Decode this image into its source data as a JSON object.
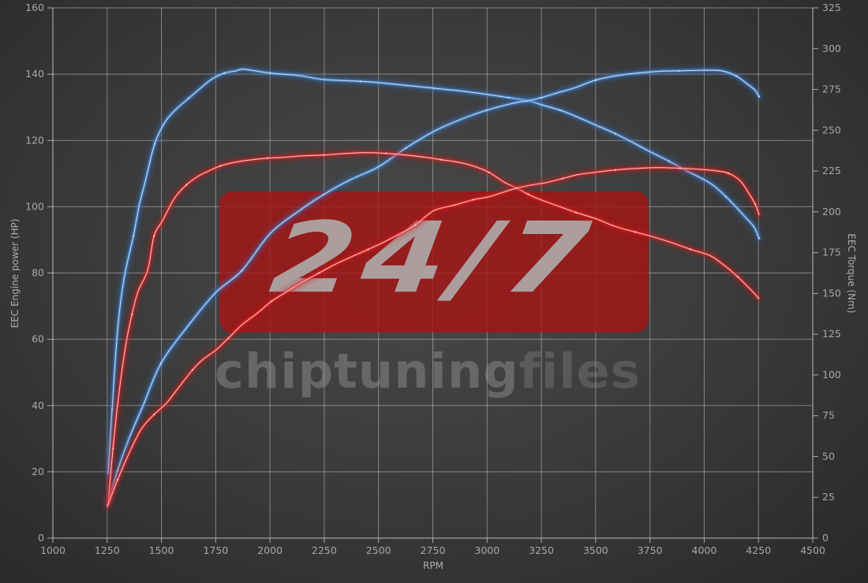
{
  "watermark": {
    "badge": "24/7",
    "brand_bold": "chiptuning",
    "brand_light": "files"
  },
  "axes": {
    "x": {
      "label": "RPM",
      "min": 1000,
      "max": 4500,
      "tick_step": 250,
      "ticks": [
        1000,
        1250,
        1500,
        1750,
        2000,
        2250,
        2500,
        2750,
        3000,
        3250,
        3500,
        3750,
        4000,
        4250,
        4500
      ]
    },
    "y_left": {
      "label": "EEC Engine power (HP)",
      "min": 0,
      "max": 160,
      "tick_step": 20,
      "ticks": [
        0,
        20,
        40,
        60,
        80,
        100,
        120,
        140,
        160
      ]
    },
    "y_right": {
      "label": "EEC Torque (Nm)",
      "min": 0,
      "max": 325,
      "tick_step": 25,
      "ticks": [
        0,
        25,
        50,
        75,
        100,
        125,
        150,
        175,
        200,
        225,
        250,
        275,
        300,
        325
      ]
    }
  },
  "colors": {
    "background": "#3d3d3d",
    "grid": "#cccccc",
    "axis_text": "#a8a8a8",
    "blue_glow": "#2e6fc4",
    "blue_mid": "#4e92dd",
    "blue_core": "#d6e8fa",
    "red_glow": "#c81616",
    "red_mid": "#e62c2c",
    "red_core": "#ffd9d9",
    "watermark_box": "#a71313",
    "watermark_text": "#b0b0b0",
    "brand_text": "#969696"
  },
  "chart_data": {
    "type": "line",
    "title": "",
    "xlabel": "RPM",
    "ylabel_left": "EEC Engine power (HP)",
    "ylabel_right": "EEC Torque (Nm)",
    "xlim": [
      1000,
      4500
    ],
    "ylim_left": [
      0,
      160
    ],
    "ylim_right": [
      0,
      325
    ],
    "grid": "on",
    "legend_position": "none",
    "series": [
      {
        "id": "torque-blue",
        "color": "blue",
        "axis": "nm",
        "units": "Nm",
        "peak": {
          "rpm": 1880,
          "value": 287
        },
        "points": [
          [
            1255,
            39.5
          ],
          [
            1273,
            79.1
          ],
          [
            1298,
            127.3
          ],
          [
            1327,
            158.6
          ],
          [
            1371,
            185.2
          ],
          [
            1397,
            203.5
          ],
          [
            1426,
            218.9
          ],
          [
            1469,
            241.6
          ],
          [
            1517,
            255.1
          ],
          [
            1571,
            263.3
          ],
          [
            1626,
            269.6
          ],
          [
            1680,
            275.8
          ],
          [
            1735,
            281.6
          ],
          [
            1790,
            285.0
          ],
          [
            1844,
            286.4
          ],
          [
            1880,
            287.4
          ],
          [
            2001,
            285.0
          ],
          [
            2135,
            283.5
          ],
          [
            2248,
            281.1
          ],
          [
            2416,
            280.0
          ],
          [
            2500,
            279.2
          ],
          [
            2626,
            277.5
          ],
          [
            2754,
            275.8
          ],
          [
            2889,
            273.9
          ],
          [
            2997,
            272.0
          ],
          [
            3099,
            270.0
          ],
          [
            3190,
            268.1
          ],
          [
            3249,
            265.7
          ],
          [
            3336,
            262.3
          ],
          [
            3409,
            258.5
          ],
          [
            3500,
            253.2
          ],
          [
            3591,
            247.9
          ],
          [
            3664,
            243.0
          ],
          [
            3751,
            236.8
          ],
          [
            3838,
            231.0
          ],
          [
            3918,
            225.2
          ],
          [
            4028,
            217.5
          ],
          [
            4100,
            209.3
          ],
          [
            4173,
            199.1
          ],
          [
            4228,
            190.9
          ],
          [
            4253,
            183.7
          ]
        ]
      },
      {
        "id": "power-blue",
        "color": "blue",
        "axis": "hp",
        "units": "HP",
        "peak": {
          "rpm": 4002,
          "value": 141
        },
        "points": [
          [
            1251,
            10.0
          ],
          [
            1298,
            20.4
          ],
          [
            1353,
            30.4
          ],
          [
            1415,
            39.9
          ],
          [
            1498,
            52.7
          ],
          [
            1626,
            64.3
          ],
          [
            1750,
            74.1
          ],
          [
            1870,
            80.7
          ],
          [
            2001,
            91.9
          ],
          [
            2135,
            98.8
          ],
          [
            2248,
            103.7
          ],
          [
            2372,
            108.2
          ],
          [
            2499,
            112.0
          ],
          [
            2626,
            117.7
          ],
          [
            2754,
            122.7
          ],
          [
            2877,
            126.3
          ],
          [
            2997,
            129.1
          ],
          [
            3125,
            131.3
          ],
          [
            3190,
            132.0
          ],
          [
            3249,
            132.9
          ],
          [
            3336,
            134.6
          ],
          [
            3409,
            136.0
          ],
          [
            3500,
            138.2
          ],
          [
            3602,
            139.6
          ],
          [
            3773,
            140.8
          ],
          [
            3882,
            141.0
          ],
          [
            4002,
            141.2
          ],
          [
            4082,
            141.0
          ],
          [
            4148,
            139.4
          ],
          [
            4199,
            137.0
          ],
          [
            4235,
            135.1
          ],
          [
            4253,
            133.2
          ]
        ]
      },
      {
        "id": "torque-red",
        "color": "red",
        "axis": "nm",
        "units": "Nm",
        "peak": {
          "rpm": 2444,
          "value": 236
        },
        "points": [
          [
            1255,
            22.2
          ],
          [
            1277,
            55.0
          ],
          [
            1302,
            86.3
          ],
          [
            1335,
            117.7
          ],
          [
            1364,
            137.0
          ],
          [
            1393,
            151.4
          ],
          [
            1437,
            164.4
          ],
          [
            1466,
            185.2
          ],
          [
            1506,
            194.8
          ],
          [
            1560,
            208.3
          ],
          [
            1615,
            216.5
          ],
          [
            1669,
            221.8
          ],
          [
            1720,
            225.2
          ],
          [
            1771,
            228.1
          ],
          [
            1844,
            230.5
          ],
          [
            1917,
            231.9
          ],
          [
            1990,
            232.9
          ],
          [
            2062,
            233.4
          ],
          [
            2153,
            234.3
          ],
          [
            2248,
            234.8
          ],
          [
            2353,
            235.8
          ],
          [
            2444,
            236.3
          ],
          [
            2535,
            235.8
          ],
          [
            2626,
            234.8
          ],
          [
            2717,
            233.4
          ],
          [
            2790,
            231.9
          ],
          [
            2863,
            230.5
          ],
          [
            2936,
            228.1
          ],
          [
            3008,
            224.2
          ],
          [
            3081,
            218.0
          ],
          [
            3136,
            214.6
          ],
          [
            3190,
            210.7
          ],
          [
            3249,
            207.3
          ],
          [
            3318,
            204.0
          ],
          [
            3409,
            199.6
          ],
          [
            3500,
            195.8
          ],
          [
            3591,
            191.0
          ],
          [
            3682,
            187.6
          ],
          [
            3751,
            185.2
          ],
          [
            3846,
            181.3
          ],
          [
            3937,
            177.0
          ],
          [
            4028,
            173.1
          ],
          [
            4100,
            166.4
          ],
          [
            4155,
            160.1
          ],
          [
            4199,
            154.3
          ],
          [
            4228,
            150.4
          ],
          [
            4250,
            147.1
          ]
        ]
      },
      {
        "id": "power-red",
        "color": "red",
        "axis": "hp",
        "units": "HP",
        "peak": {
          "rpm": 3791,
          "value": 112
        },
        "points": [
          [
            1251,
            9.5
          ],
          [
            1298,
            17.6
          ],
          [
            1353,
            25.9
          ],
          [
            1408,
            33.0
          ],
          [
            1466,
            37.3
          ],
          [
            1524,
            40.8
          ],
          [
            1589,
            46.3
          ],
          [
            1644,
            50.8
          ],
          [
            1691,
            53.9
          ],
          [
            1750,
            56.7
          ],
          [
            1808,
            60.3
          ],
          [
            1870,
            64.3
          ],
          [
            1942,
            67.9
          ],
          [
            2008,
            71.5
          ],
          [
            2081,
            74.5
          ],
          [
            2153,
            77.4
          ],
          [
            2226,
            80.0
          ],
          [
            2299,
            82.6
          ],
          [
            2379,
            85.0
          ],
          [
            2452,
            87.1
          ],
          [
            2524,
            89.3
          ],
          [
            2597,
            91.8
          ],
          [
            2670,
            94.5
          ],
          [
            2754,
            98.8
          ],
          [
            2845,
            100.4
          ],
          [
            2936,
            102.1
          ],
          [
            3008,
            103.0
          ],
          [
            3081,
            104.5
          ],
          [
            3136,
            105.6
          ],
          [
            3209,
            106.6
          ],
          [
            3274,
            107.3
          ],
          [
            3347,
            108.5
          ],
          [
            3420,
            109.7
          ],
          [
            3500,
            110.4
          ],
          [
            3591,
            111.1
          ],
          [
            3700,
            111.6
          ],
          [
            3791,
            111.8
          ],
          [
            3889,
            111.6
          ],
          [
            3973,
            111.3
          ],
          [
            4046,
            110.9
          ],
          [
            4111,
            110.1
          ],
          [
            4166,
            107.8
          ],
          [
            4209,
            103.7
          ],
          [
            4235,
            100.7
          ],
          [
            4253,
            97.6
          ]
        ]
      }
    ]
  }
}
